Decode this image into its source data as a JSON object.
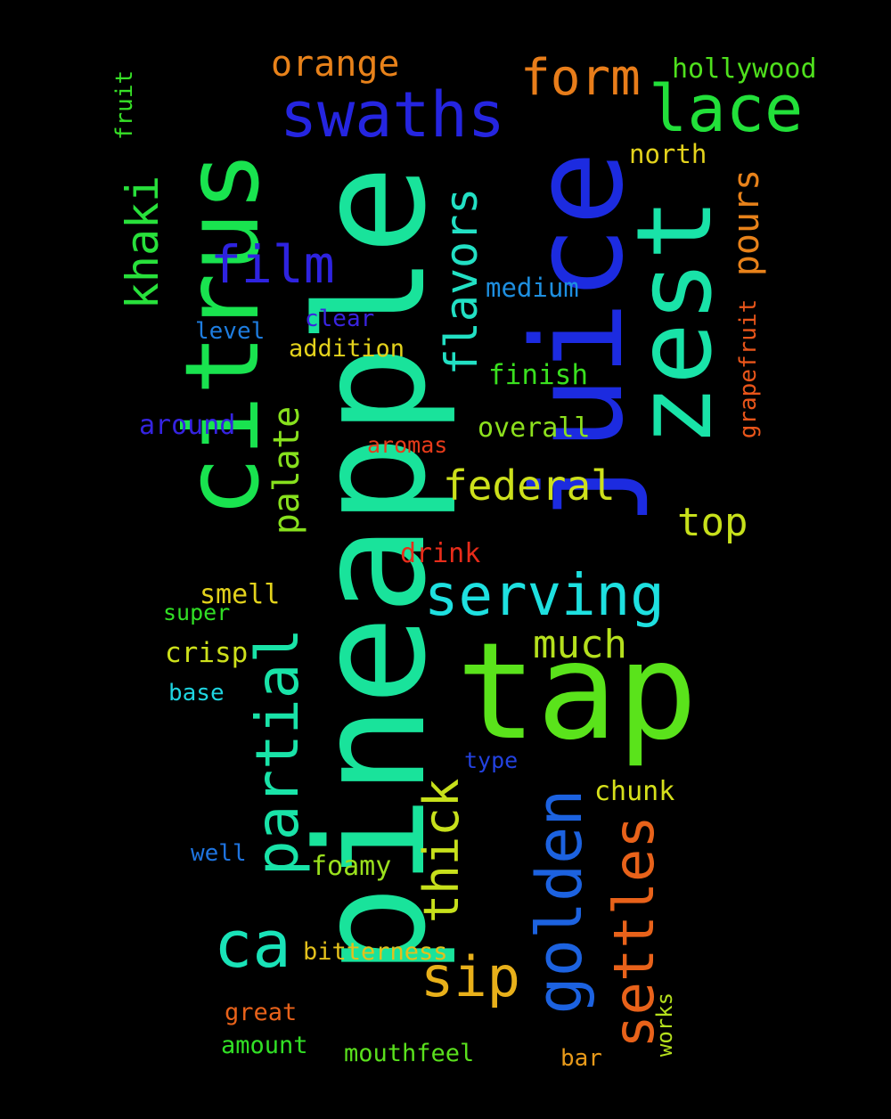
{
  "words": [
    {
      "text": "pineapple",
      "color": "#19e39b"
    },
    {
      "text": "juice",
      "color": "#1c2be0"
    },
    {
      "text": "citrus",
      "color": "#19e34f"
    },
    {
      "text": "tap",
      "color": "#5ae31b"
    },
    {
      "text": "zest",
      "color": "#19e3a8"
    },
    {
      "text": "swaths",
      "color": "#2525e0"
    },
    {
      "text": "lace",
      "color": "#22e03a"
    },
    {
      "text": "form",
      "color": "#e87d1a"
    },
    {
      "text": "orange",
      "color": "#e8821a"
    },
    {
      "text": "hollywood",
      "color": "#4fe01d"
    },
    {
      "text": "fruit",
      "color": "#37e027"
    },
    {
      "text": "khaki",
      "color": "#28e03b"
    },
    {
      "text": "film",
      "color": "#2e23e0"
    },
    {
      "text": "flavors",
      "color": "#22e0c4"
    },
    {
      "text": "north",
      "color": "#e3d21c"
    },
    {
      "text": "pours",
      "color": "#e8821a"
    },
    {
      "text": "medium",
      "color": "#1e8fe0"
    },
    {
      "text": "grapefruit",
      "color": "#e8551a"
    },
    {
      "text": "level",
      "color": "#1e7de0"
    },
    {
      "text": "clear",
      "color": "#3a24e0"
    },
    {
      "text": "addition",
      "color": "#e3d21c"
    },
    {
      "text": "finish",
      "color": "#3ae01f"
    },
    {
      "text": "around",
      "color": "#3523e0"
    },
    {
      "text": "overall",
      "color": "#8de01d"
    },
    {
      "text": "aromas",
      "color": "#e83b1a"
    },
    {
      "text": "palate",
      "color": "#87e01d"
    },
    {
      "text": "federal",
      "color": "#cde01b"
    },
    {
      "text": "top",
      "color": "#c7e01b"
    },
    {
      "text": "drink",
      "color": "#e82c1a"
    },
    {
      "text": "serving",
      "color": "#1ee0e0"
    },
    {
      "text": "smell",
      "color": "#e3d21c"
    },
    {
      "text": "super",
      "color": "#31e025"
    },
    {
      "text": "partial",
      "color": "#19e3a8"
    },
    {
      "text": "much",
      "color": "#b5e01d"
    },
    {
      "text": "crisp",
      "color": "#cde01b"
    },
    {
      "text": "base",
      "color": "#1ed4e0"
    },
    {
      "text": "thick",
      "color": "#c7e01b"
    },
    {
      "text": "type",
      "color": "#2342e0"
    },
    {
      "text": "chunk",
      "color": "#d6e01b"
    },
    {
      "text": "golden",
      "color": "#1c62e0"
    },
    {
      "text": "settles",
      "color": "#e8621a"
    },
    {
      "text": "ca",
      "color": "#19e3b8"
    },
    {
      "text": "well",
      "color": "#1e74e0"
    },
    {
      "text": "foamy",
      "color": "#9ae01d"
    },
    {
      "text": "bitterness",
      "color": "#e3c01c"
    },
    {
      "text": "sip",
      "color": "#e8b01a"
    },
    {
      "text": "great",
      "color": "#e8621a"
    },
    {
      "text": "works",
      "color": "#b5e01d"
    },
    {
      "text": "amount",
      "color": "#31e025"
    },
    {
      "text": "mouthfeel",
      "color": "#5ae01d"
    },
    {
      "text": "bar",
      "color": "#e89a1a"
    }
  ]
}
